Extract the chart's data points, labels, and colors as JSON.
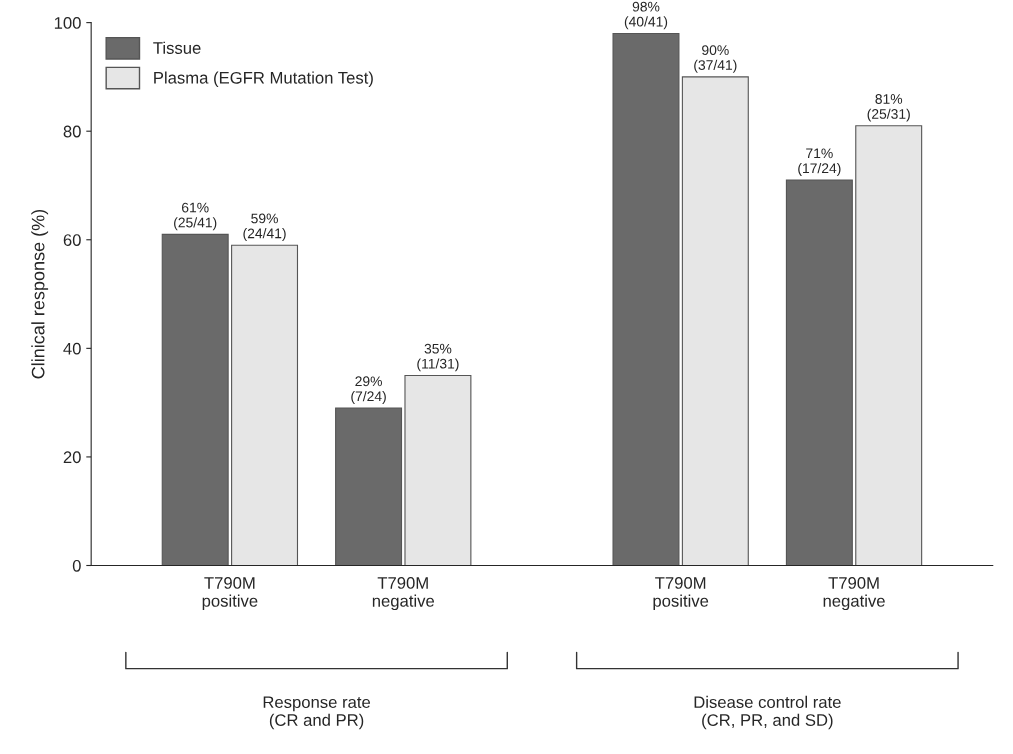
{
  "chart_data": {
    "type": "bar",
    "ylabel": "Clinical response (%)",
    "categories": [
      "T790M\npositive",
      "T790M\nnegative",
      "T790M\npositive",
      "T790M\nnegative"
    ],
    "series": [
      {
        "name": "Tissue",
        "color": "#6a6a6a",
        "values": [
          61,
          29,
          98,
          71
        ],
        "value_labels": [
          "61%\n(25/41)",
          "29%\n(7/24)",
          "98%\n(40/41)",
          "71%\n(17/24)"
        ]
      },
      {
        "name": "Plasma (EGFR Mutation Test)",
        "color": "#e6e6e6",
        "values": [
          59,
          35,
          90,
          81
        ],
        "value_labels": [
          "59%\n(24/41)",
          "35%\n(11/31)",
          "90%\n(37/41)",
          "81%\n(25/31)"
        ]
      }
    ],
    "ylim": [
      0,
      100
    ],
    "yticks": [
      0,
      20,
      40,
      60,
      80,
      100
    ],
    "grid": false,
    "legend": "top left",
    "annotations": [
      "Response rate\n(CR and PR)",
      "Disease control rate\n(CR, PR, and SD)"
    ]
  }
}
